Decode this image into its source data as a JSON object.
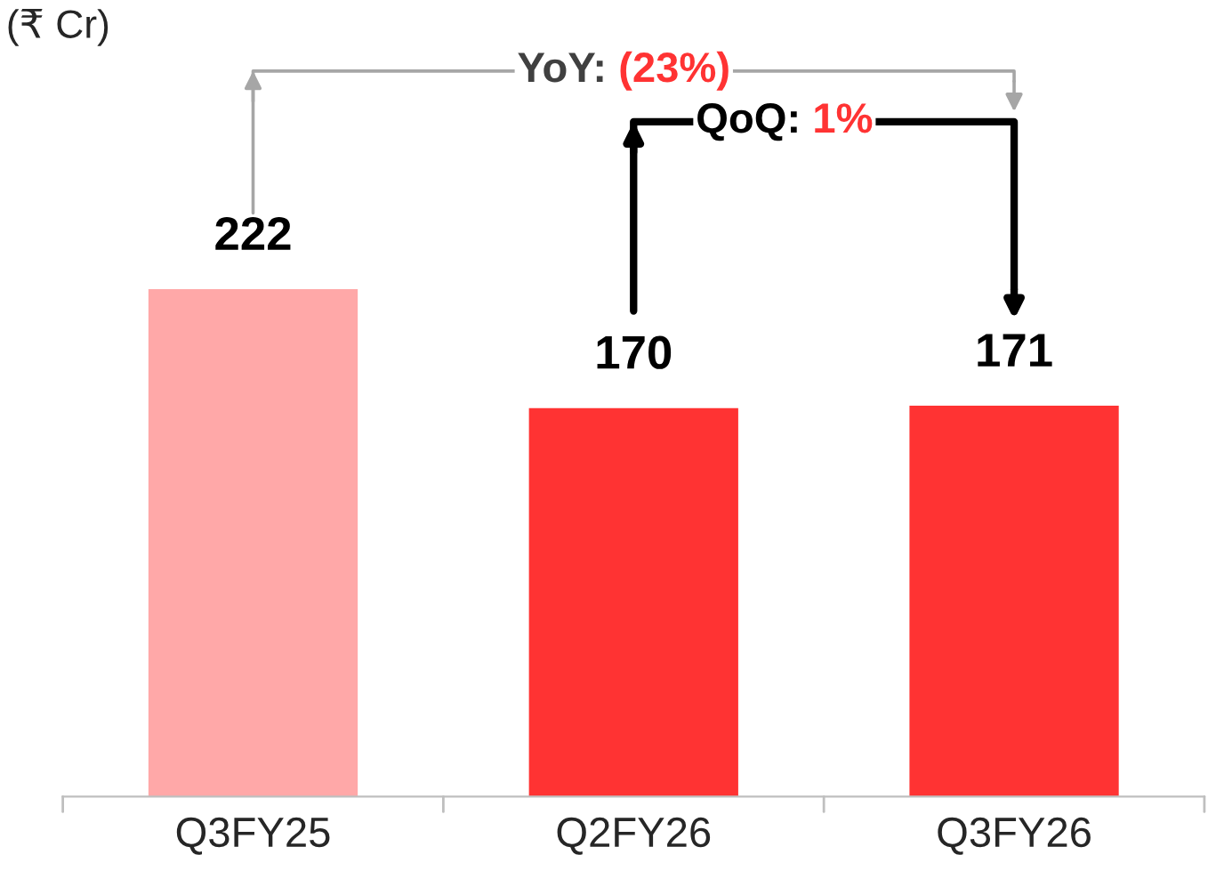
{
  "chart_data": {
    "type": "bar",
    "categories": [
      "Q3FY25",
      "Q2FY26",
      "Q3FY26"
    ],
    "values": [
      222,
      170,
      171
    ],
    "colors": [
      "#ffa8a8",
      "#ff3333",
      "#ff3333"
    ],
    "data_labels": true,
    "grid": false,
    "legend": false,
    "tick_labels": "x",
    "annotations": [
      "(₹ Cr)",
      "YoY: (23%)",
      "QoQ: 1%"
    ]
  }
}
